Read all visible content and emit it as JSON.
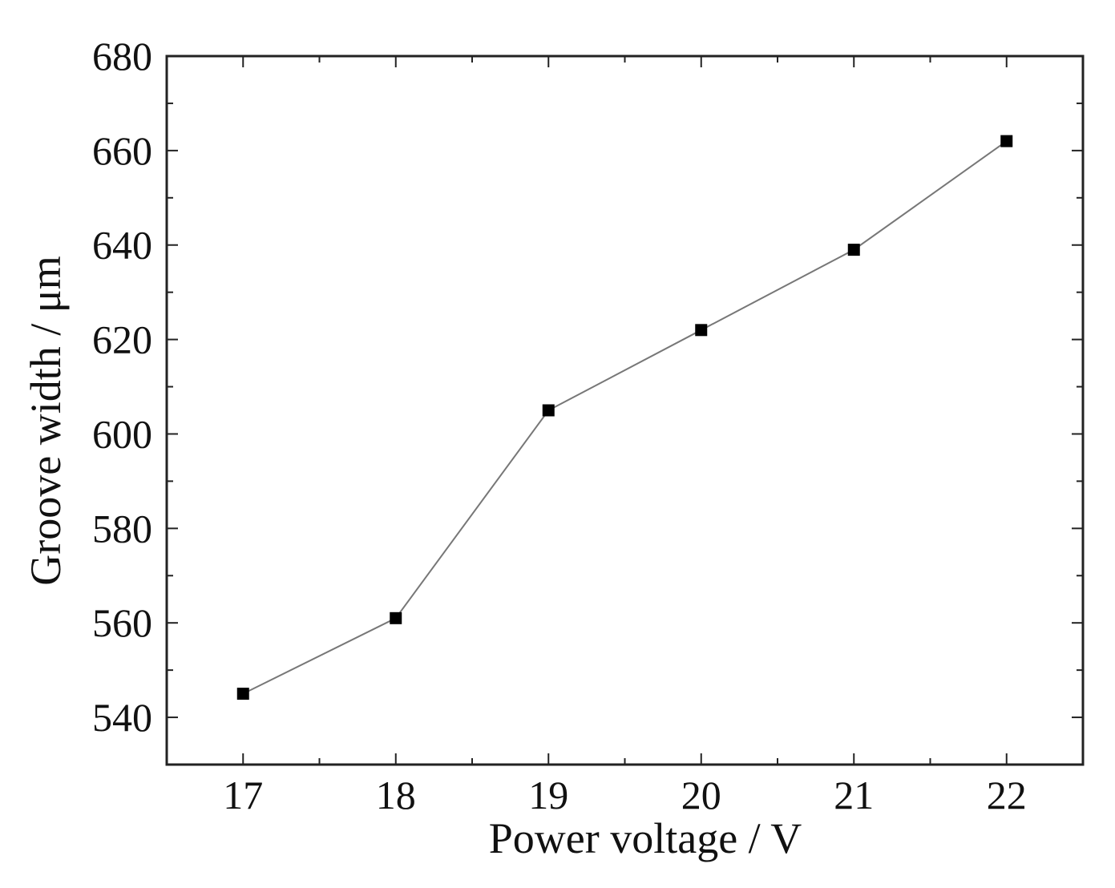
{
  "chart_data": {
    "type": "line",
    "title": "",
    "xlabel": "Power voltage / V",
    "ylabel": "Groove width / μm",
    "xlim": [
      16.5,
      22.5
    ],
    "ylim": [
      530,
      680
    ],
    "xticks": [
      17,
      18,
      19,
      20,
      21,
      22
    ],
    "yticks": [
      540,
      560,
      580,
      600,
      620,
      640,
      660,
      680
    ],
    "x_tick_labels": [
      "17",
      "18",
      "19",
      "20",
      "21",
      "22"
    ],
    "y_tick_labels": [
      "540",
      "560",
      "580",
      "600",
      "620",
      "640",
      "660",
      "680"
    ],
    "grid": false,
    "legend": "none",
    "series": [
      {
        "x": [
          17,
          18,
          19,
          20,
          21,
          22
        ],
        "y": [
          545,
          561,
          605,
          622,
          639,
          662
        ],
        "marker": "square",
        "line_color": "#777777",
        "marker_color": "#000000"
      }
    ]
  }
}
